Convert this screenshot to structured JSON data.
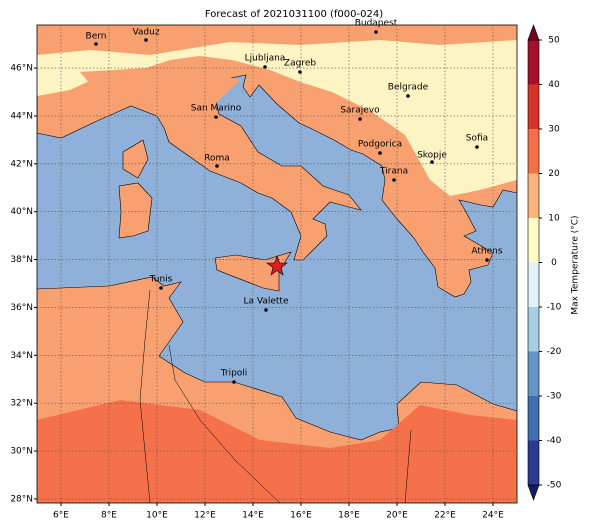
{
  "title": "Forecast of 2021031100 (f000-024)",
  "map": {
    "xlim": [
      5,
      25
    ],
    "ylim": [
      27.83,
      47.8
    ],
    "xticks": [
      {
        "value": 6,
        "label": "6°E"
      },
      {
        "value": 8,
        "label": "8°E"
      },
      {
        "value": 10,
        "label": "10°E"
      },
      {
        "value": 12,
        "label": "12°E"
      },
      {
        "value": 14,
        "label": "14°E"
      },
      {
        "value": 16,
        "label": "16°E"
      },
      {
        "value": 18,
        "label": "18°E"
      },
      {
        "value": 20,
        "label": "20°E"
      },
      {
        "value": 22,
        "label": "22°E"
      },
      {
        "value": 24,
        "label": "24°E"
      }
    ],
    "yticks": [
      {
        "value": 28,
        "label": "28°N"
      },
      {
        "value": 30,
        "label": "30°N"
      },
      {
        "value": 32,
        "label": "32°N"
      },
      {
        "value": 34,
        "label": "34°N"
      },
      {
        "value": 36,
        "label": "36°N"
      },
      {
        "value": 38,
        "label": "38°N"
      },
      {
        "value": 40,
        "label": "40°N"
      },
      {
        "value": 42,
        "label": "42°N"
      },
      {
        "value": 44,
        "label": "44°N"
      },
      {
        "value": 46,
        "label": "46°N"
      }
    ],
    "grid": true
  },
  "cities": [
    "Bern",
    "Vaduz",
    "Budapest",
    "Ljubljana",
    "Zagreb",
    "Belgrade",
    "San Marino",
    "Sarajevo",
    "Sofia",
    "Podgorica",
    "Skopje",
    "Roma",
    "Tirana",
    "Athens",
    "Tunis",
    "La Valette",
    "Tripoli"
  ],
  "colorbar": {
    "label": "Max Temperature (°C)",
    "ticks": [
      -50,
      -40,
      -30,
      -20,
      -10,
      0,
      10,
      20,
      30,
      40,
      50
    ],
    "colors": [
      "#2b3a92",
      "#3f6db0",
      "#6596c6",
      "#a6cfe4",
      "#e1f3f8",
      "#fffcc5",
      "#fdb47c",
      "#f3704a",
      "#d4342c",
      "#a3102a"
    ],
    "extend_colors": [
      "#16186a",
      "#7a0020"
    ]
  }
}
